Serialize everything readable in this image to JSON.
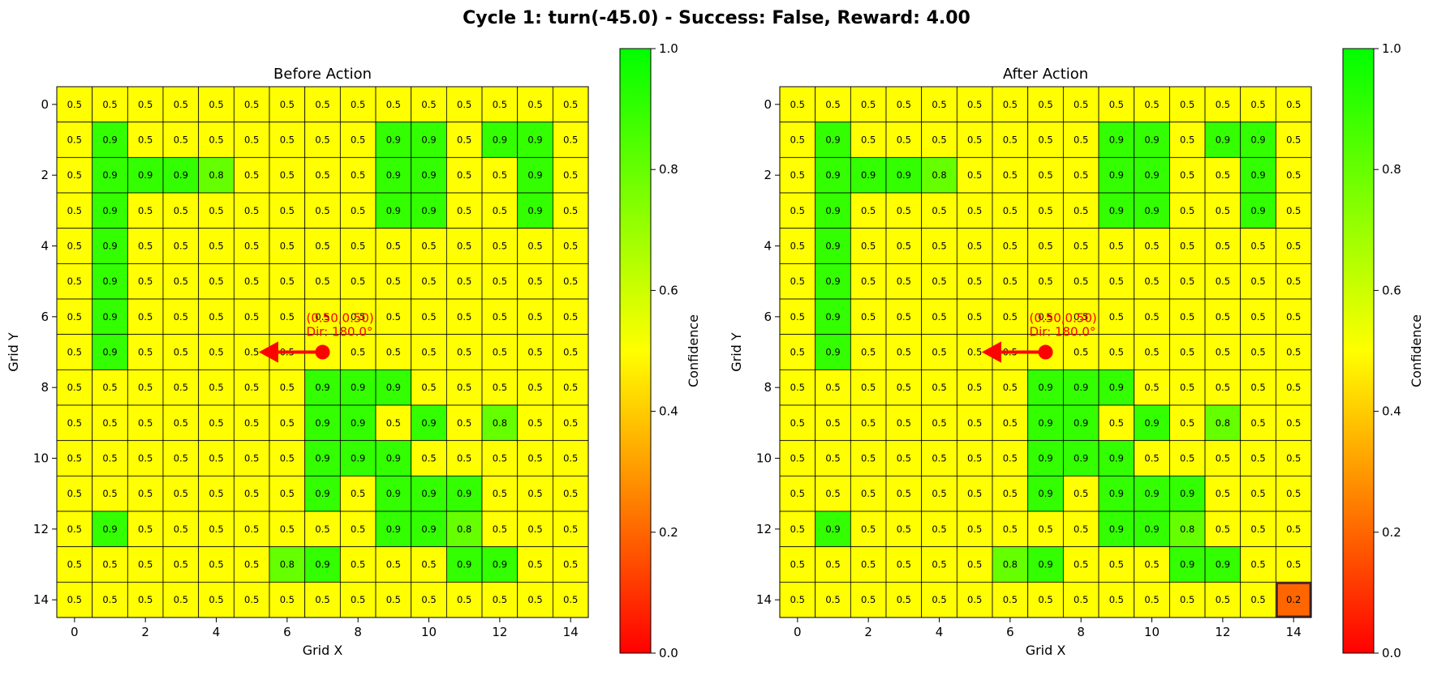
{
  "title": "Cycle 1: turn(-45.0) - Success: False, Reward: 4.00",
  "chart_data": [
    {
      "type": "heatmap",
      "title": "Before Action",
      "xlabel": "Grid X",
      "ylabel": "Grid Y",
      "xticks": [
        "0",
        "2",
        "4",
        "6",
        "8",
        "10",
        "12",
        "14"
      ],
      "yticks": [
        "0",
        "2",
        "4",
        "6",
        "8",
        "10",
        "12",
        "14"
      ],
      "colorbar_label": "Confidence",
      "colorbar_ticks": [
        "0.0",
        "0.2",
        "0.4",
        "0.6",
        "0.8",
        "1.0"
      ],
      "vmin": 0.0,
      "vmax": 1.0,
      "colormap": [
        "#ff0000",
        "#ffff00",
        "#00ff00"
      ],
      "grid": [
        [
          0.5,
          0.5,
          0.5,
          0.5,
          0.5,
          0.5,
          0.5,
          0.5,
          0.5,
          0.5,
          0.5,
          0.5,
          0.5,
          0.5,
          0.5
        ],
        [
          0.5,
          0.9,
          0.5,
          0.5,
          0.5,
          0.5,
          0.5,
          0.5,
          0.5,
          0.9,
          0.9,
          0.5,
          0.9,
          0.9,
          0.5
        ],
        [
          0.5,
          0.9,
          0.9,
          0.9,
          0.8,
          0.5,
          0.5,
          0.5,
          0.5,
          0.9,
          0.9,
          0.5,
          0.5,
          0.9,
          0.5
        ],
        [
          0.5,
          0.9,
          0.5,
          0.5,
          0.5,
          0.5,
          0.5,
          0.5,
          0.5,
          0.9,
          0.9,
          0.5,
          0.5,
          0.9,
          0.5
        ],
        [
          0.5,
          0.9,
          0.5,
          0.5,
          0.5,
          0.5,
          0.5,
          0.5,
          0.5,
          0.5,
          0.5,
          0.5,
          0.5,
          0.5,
          0.5
        ],
        [
          0.5,
          0.9,
          0.5,
          0.5,
          0.5,
          0.5,
          0.5,
          0.5,
          0.5,
          0.5,
          0.5,
          0.5,
          0.5,
          0.5,
          0.5
        ],
        [
          0.5,
          0.9,
          0.5,
          0.5,
          0.5,
          0.5,
          0.5,
          0.5,
          0.5,
          0.5,
          0.5,
          0.5,
          0.5,
          0.5,
          0.5
        ],
        [
          0.5,
          0.9,
          0.5,
          0.5,
          0.5,
          0.5,
          0.5,
          0.5,
          0.5,
          0.5,
          0.5,
          0.5,
          0.5,
          0.5,
          0.5
        ],
        [
          0.5,
          0.5,
          0.5,
          0.5,
          0.5,
          0.5,
          0.5,
          0.9,
          0.9,
          0.9,
          0.5,
          0.5,
          0.5,
          0.5,
          0.5
        ],
        [
          0.5,
          0.5,
          0.5,
          0.5,
          0.5,
          0.5,
          0.5,
          0.9,
          0.9,
          0.5,
          0.9,
          0.5,
          0.8,
          0.5,
          0.5
        ],
        [
          0.5,
          0.5,
          0.5,
          0.5,
          0.5,
          0.5,
          0.5,
          0.9,
          0.9,
          0.9,
          0.5,
          0.5,
          0.5,
          0.5,
          0.5
        ],
        [
          0.5,
          0.5,
          0.5,
          0.5,
          0.5,
          0.5,
          0.5,
          0.9,
          0.5,
          0.9,
          0.9,
          0.9,
          0.5,
          0.5,
          0.5
        ],
        [
          0.5,
          0.9,
          0.5,
          0.5,
          0.5,
          0.5,
          0.5,
          0.5,
          0.5,
          0.9,
          0.9,
          0.8,
          0.5,
          0.5,
          0.5
        ],
        [
          0.5,
          0.5,
          0.5,
          0.5,
          0.5,
          0.5,
          0.8,
          0.9,
          0.5,
          0.5,
          0.5,
          0.9,
          0.9,
          0.5,
          0.5
        ],
        [
          0.5,
          0.5,
          0.5,
          0.5,
          0.5,
          0.5,
          0.5,
          0.5,
          0.5,
          0.5,
          0.5,
          0.5,
          0.5,
          0.5,
          0.5
        ]
      ],
      "agent": {
        "x": 7,
        "y": 7,
        "direction_deg": 180,
        "pos_label": "(0.50,0.50)",
        "dir_label": "Dir: 180.0°",
        "color": "#ff0000"
      },
      "highlight": null
    },
    {
      "type": "heatmap",
      "title": "After Action",
      "xlabel": "Grid X",
      "ylabel": "Grid Y",
      "xticks": [
        "0",
        "2",
        "4",
        "6",
        "8",
        "10",
        "12",
        "14"
      ],
      "yticks": [
        "0",
        "2",
        "4",
        "6",
        "8",
        "10",
        "12",
        "14"
      ],
      "colorbar_label": "Confidence",
      "colorbar_ticks": [
        "0.0",
        "0.2",
        "0.4",
        "0.6",
        "0.8",
        "1.0"
      ],
      "vmin": 0.0,
      "vmax": 1.0,
      "colormap": [
        "#ff0000",
        "#ffff00",
        "#00ff00"
      ],
      "grid": [
        [
          0.5,
          0.5,
          0.5,
          0.5,
          0.5,
          0.5,
          0.5,
          0.5,
          0.5,
          0.5,
          0.5,
          0.5,
          0.5,
          0.5,
          0.5
        ],
        [
          0.5,
          0.9,
          0.5,
          0.5,
          0.5,
          0.5,
          0.5,
          0.5,
          0.5,
          0.9,
          0.9,
          0.5,
          0.9,
          0.9,
          0.5
        ],
        [
          0.5,
          0.9,
          0.9,
          0.9,
          0.8,
          0.5,
          0.5,
          0.5,
          0.5,
          0.9,
          0.9,
          0.5,
          0.5,
          0.9,
          0.5
        ],
        [
          0.5,
          0.9,
          0.5,
          0.5,
          0.5,
          0.5,
          0.5,
          0.5,
          0.5,
          0.9,
          0.9,
          0.5,
          0.5,
          0.9,
          0.5
        ],
        [
          0.5,
          0.9,
          0.5,
          0.5,
          0.5,
          0.5,
          0.5,
          0.5,
          0.5,
          0.5,
          0.5,
          0.5,
          0.5,
          0.5,
          0.5
        ],
        [
          0.5,
          0.9,
          0.5,
          0.5,
          0.5,
          0.5,
          0.5,
          0.5,
          0.5,
          0.5,
          0.5,
          0.5,
          0.5,
          0.5,
          0.5
        ],
        [
          0.5,
          0.9,
          0.5,
          0.5,
          0.5,
          0.5,
          0.5,
          0.5,
          0.5,
          0.5,
          0.5,
          0.5,
          0.5,
          0.5,
          0.5
        ],
        [
          0.5,
          0.9,
          0.5,
          0.5,
          0.5,
          0.5,
          0.5,
          0.5,
          0.5,
          0.5,
          0.5,
          0.5,
          0.5,
          0.5,
          0.5
        ],
        [
          0.5,
          0.5,
          0.5,
          0.5,
          0.5,
          0.5,
          0.5,
          0.9,
          0.9,
          0.9,
          0.5,
          0.5,
          0.5,
          0.5,
          0.5
        ],
        [
          0.5,
          0.5,
          0.5,
          0.5,
          0.5,
          0.5,
          0.5,
          0.9,
          0.9,
          0.5,
          0.9,
          0.5,
          0.8,
          0.5,
          0.5
        ],
        [
          0.5,
          0.5,
          0.5,
          0.5,
          0.5,
          0.5,
          0.5,
          0.9,
          0.9,
          0.9,
          0.5,
          0.5,
          0.5,
          0.5,
          0.5
        ],
        [
          0.5,
          0.5,
          0.5,
          0.5,
          0.5,
          0.5,
          0.5,
          0.9,
          0.5,
          0.9,
          0.9,
          0.9,
          0.5,
          0.5,
          0.5
        ],
        [
          0.5,
          0.9,
          0.5,
          0.5,
          0.5,
          0.5,
          0.5,
          0.5,
          0.5,
          0.9,
          0.9,
          0.8,
          0.5,
          0.5,
          0.5
        ],
        [
          0.5,
          0.5,
          0.5,
          0.5,
          0.5,
          0.5,
          0.8,
          0.9,
          0.5,
          0.5,
          0.5,
          0.9,
          0.9,
          0.5,
          0.5
        ],
        [
          0.5,
          0.5,
          0.5,
          0.5,
          0.5,
          0.5,
          0.5,
          0.5,
          0.5,
          0.5,
          0.5,
          0.5,
          0.5,
          0.5,
          0.2
        ]
      ],
      "agent": {
        "x": 7,
        "y": 7,
        "direction_deg": 180,
        "pos_label": "(0.50,0.50)",
        "dir_label": "Dir: 180.0°",
        "color": "#ff0000"
      },
      "highlight": {
        "x": 14,
        "y": 14,
        "color": "#4a2a2a"
      }
    }
  ]
}
